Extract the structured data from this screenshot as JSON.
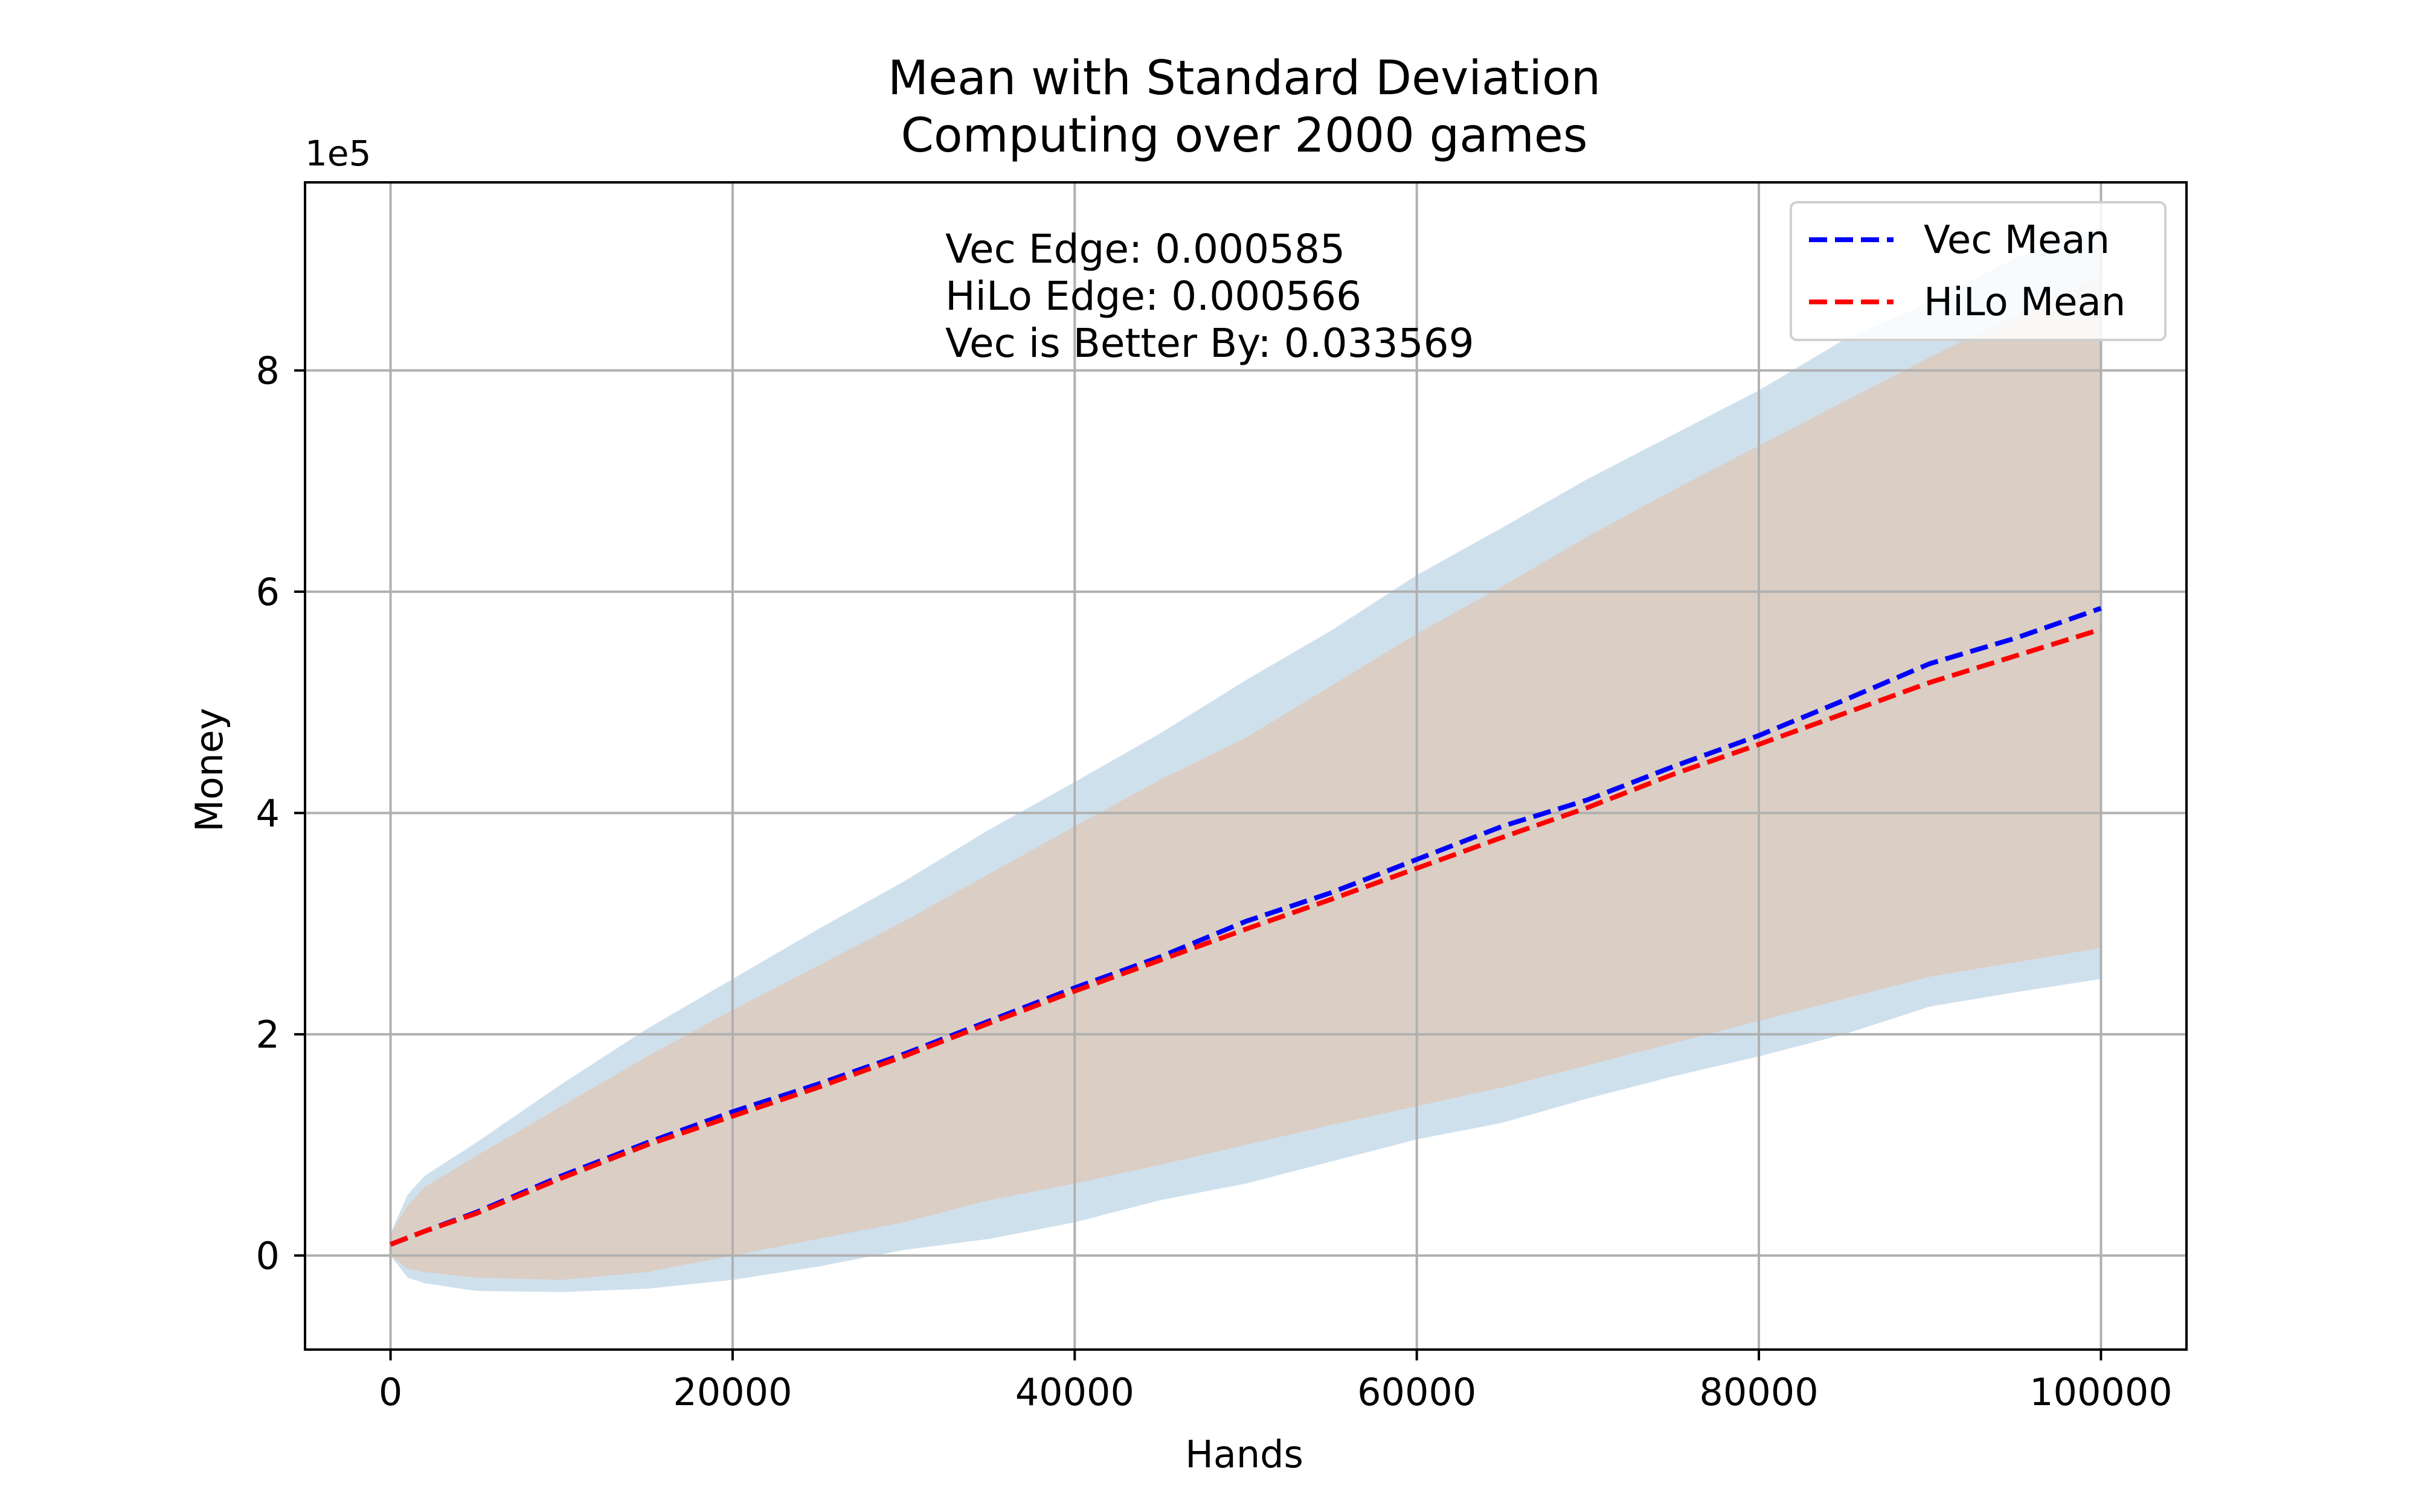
{
  "chart_data": {
    "type": "line",
    "title": "Mean with Standard Deviation",
    "subtitle": "Computing over 2000 games",
    "xlabel": "Hands",
    "ylabel": "Money",
    "y_offset_label": "1e5",
    "xlim": [
      -5000,
      105000
    ],
    "ylim": [
      -0.85,
      9.7
    ],
    "x_ticks": [
      0,
      20000,
      40000,
      60000,
      80000,
      100000
    ],
    "x_tick_labels": [
      "0",
      "20000",
      "40000",
      "60000",
      "80000",
      "100000"
    ],
    "y_ticks": [
      0,
      2,
      4,
      6,
      8
    ],
    "y_tick_labels": [
      "0",
      "2",
      "4",
      "6",
      "8"
    ],
    "grid": true,
    "legend_position": "upper-right",
    "annotations": [
      "Vec Edge: 0.000585",
      "HiLo Edge: 0.000566",
      "Vec is Better By: 0.033569"
    ],
    "x": [
      0,
      1000,
      2000,
      5000,
      10000,
      15000,
      20000,
      25000,
      30000,
      35000,
      40000,
      45000,
      50000,
      55000,
      60000,
      65000,
      70000,
      75000,
      80000,
      85000,
      90000,
      95000,
      100000
    ],
    "series": [
      {
        "name": "Vec Mean",
        "color": "#0000ff",
        "style": "dashed",
        "mean": [
          0.1,
          0.16,
          0.22,
          0.39,
          0.72,
          1.02,
          1.3,
          1.55,
          1.82,
          2.12,
          2.42,
          2.7,
          3.02,
          3.28,
          3.58,
          3.88,
          4.12,
          4.42,
          4.7,
          5.02,
          5.35,
          5.58,
          5.85
        ],
        "std_band": {
          "color": "#cfe0ed",
          "lower": [
            0.0,
            -0.2,
            -0.25,
            -0.32,
            -0.33,
            -0.3,
            -0.22,
            -0.1,
            0.05,
            0.15,
            0.3,
            0.5,
            0.65,
            0.85,
            1.05,
            1.2,
            1.42,
            1.62,
            1.8,
            2.0,
            2.25,
            2.38,
            2.5
          ],
          "upper": [
            0.2,
            0.55,
            0.72,
            1.02,
            1.55,
            2.05,
            2.5,
            2.95,
            3.38,
            3.85,
            4.28,
            4.72,
            5.2,
            5.65,
            6.15,
            6.58,
            7.02,
            7.42,
            7.82,
            8.28,
            8.62,
            9.02,
            9.3
          ]
        }
      },
      {
        "name": "HiLo Mean",
        "color": "#ff0000",
        "style": "dashed",
        "mean": [
          0.1,
          0.16,
          0.22,
          0.38,
          0.7,
          1.0,
          1.26,
          1.52,
          1.8,
          2.1,
          2.39,
          2.67,
          2.95,
          3.22,
          3.5,
          3.78,
          4.05,
          4.35,
          4.62,
          4.9,
          5.18,
          5.42,
          5.66
        ],
        "std_band": {
          "color": "#dbcec4",
          "lower": [
            0.0,
            -0.12,
            -0.15,
            -0.2,
            -0.22,
            -0.15,
            0.0,
            0.15,
            0.3,
            0.5,
            0.65,
            0.82,
            1.0,
            1.18,
            1.35,
            1.52,
            1.72,
            1.92,
            2.12,
            2.32,
            2.52,
            2.65,
            2.78
          ],
          "upper": [
            0.2,
            0.45,
            0.62,
            0.9,
            1.35,
            1.8,
            2.22,
            2.62,
            3.02,
            3.45,
            3.88,
            4.3,
            4.68,
            5.15,
            5.62,
            6.05,
            6.5,
            6.92,
            7.32,
            7.72,
            8.12,
            8.5,
            8.85
          ]
        }
      }
    ]
  }
}
